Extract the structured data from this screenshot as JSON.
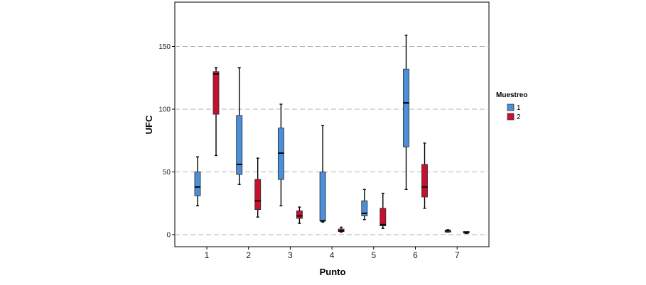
{
  "chart_data": {
    "type": "boxplot",
    "xlabel": "Punto",
    "ylabel": "UFC",
    "categories": [
      "1",
      "2",
      "3",
      "4",
      "5",
      "6",
      "7"
    ],
    "ylim": [
      -8,
      185
    ],
    "yticks": [
      0,
      50,
      100,
      150
    ],
    "grid": "horizontal dashed",
    "legend": {
      "title": "Muestreo",
      "position": "right"
    },
    "series": [
      {
        "name": "1",
        "color": "#4a90d9",
        "boxes": [
          {
            "min": 23,
            "q1": 31,
            "median": 38,
            "q3": 50,
            "max": 62
          },
          {
            "min": 40,
            "q1": 48,
            "median": 56,
            "q3": 95,
            "max": 133
          },
          {
            "min": 23,
            "q1": 44,
            "median": 65,
            "q3": 85,
            "max": 104
          },
          {
            "min": 10,
            "q1": 11,
            "median": 11,
            "q3": 50,
            "max": 87
          },
          {
            "min": 12,
            "q1": 15,
            "median": 17,
            "q3": 27,
            "max": 36
          },
          {
            "min": 36,
            "q1": 70,
            "median": 105,
            "q3": 132,
            "max": 159
          },
          {
            "min": 2,
            "q1": 2,
            "median": 3,
            "q3": 3.5,
            "max": 4
          }
        ]
      },
      {
        "name": "2",
        "color": "#c8102e",
        "boxes": [
          {
            "min": 63,
            "q1": 96,
            "median": 128,
            "q3": 130,
            "max": 133
          },
          {
            "min": 14,
            "q1": 20,
            "median": 27,
            "q3": 44,
            "max": 61
          },
          {
            "min": 9,
            "q1": 13,
            "median": 15,
            "q3": 19,
            "max": 22
          },
          {
            "min": 2,
            "q1": 2.5,
            "median": 3,
            "q3": 4.5,
            "max": 6
          },
          {
            "min": 5,
            "q1": 7,
            "median": 8,
            "q3": 21,
            "max": 33
          },
          {
            "min": 21,
            "q1": 30,
            "median": 38,
            "q3": 56,
            "max": 73
          },
          {
            "min": 1,
            "q1": 1,
            "median": 1.5,
            "q3": 2,
            "max": 2
          }
        ]
      }
    ]
  }
}
